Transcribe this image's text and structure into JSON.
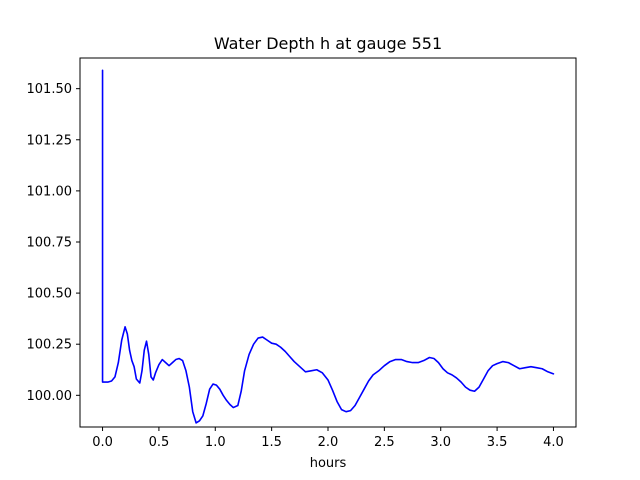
{
  "chart_data": {
    "type": "line",
    "title": "Water Depth h at gauge 551",
    "xlabel": "hours",
    "ylabel": "",
    "xlim": [
      -0.2,
      4.2
    ],
    "ylim": [
      99.845,
      101.65
    ],
    "x_ticks": [
      0.0,
      0.5,
      1.0,
      1.5,
      2.0,
      2.5,
      3.0,
      3.5,
      4.0
    ],
    "x_tick_labels": [
      "0.0",
      "0.5",
      "1.0",
      "1.5",
      "2.0",
      "2.5",
      "3.0",
      "3.5",
      "4.0"
    ],
    "y_ticks": [
      100.0,
      100.25,
      100.5,
      100.75,
      101.0,
      101.25,
      101.5
    ],
    "y_tick_labels": [
      "100.00",
      "100.25",
      "100.50",
      "100.75",
      "101.00",
      "101.25",
      "101.50"
    ],
    "grid": false,
    "legend": "none",
    "series": [
      {
        "color": "#0000ff",
        "x": [
          0.0,
          0.0,
          0.005,
          0.05,
          0.08,
          0.11,
          0.14,
          0.17,
          0.2,
          0.22,
          0.24,
          0.26,
          0.28,
          0.3,
          0.33,
          0.35,
          0.37,
          0.39,
          0.41,
          0.43,
          0.45,
          0.47,
          0.5,
          0.53,
          0.56,
          0.59,
          0.62,
          0.65,
          0.68,
          0.71,
          0.74,
          0.77,
          0.8,
          0.83,
          0.86,
          0.89,
          0.92,
          0.95,
          0.98,
          1.01,
          1.04,
          1.07,
          1.1,
          1.13,
          1.16,
          1.2,
          1.23,
          1.26,
          1.3,
          1.34,
          1.38,
          1.42,
          1.46,
          1.5,
          1.54,
          1.58,
          1.62,
          1.66,
          1.7,
          1.75,
          1.8,
          1.85,
          1.9,
          1.95,
          2.0,
          2.04,
          2.08,
          2.12,
          2.16,
          2.2,
          2.24,
          2.28,
          2.32,
          2.36,
          2.4,
          2.45,
          2.5,
          2.55,
          2.6,
          2.65,
          2.7,
          2.75,
          2.8,
          2.85,
          2.9,
          2.94,
          2.98,
          3.02,
          3.06,
          3.1,
          3.14,
          3.18,
          3.22,
          3.26,
          3.3,
          3.34,
          3.38,
          3.42,
          3.46,
          3.5,
          3.55,
          3.6,
          3.65,
          3.7,
          3.75,
          3.8,
          3.85,
          3.9,
          3.95,
          4.0
        ],
        "y": [
          101.59,
          100.065,
          100.065,
          100.065,
          100.07,
          100.09,
          100.16,
          100.27,
          100.335,
          100.3,
          100.22,
          100.17,
          100.14,
          100.08,
          100.06,
          100.12,
          100.22,
          100.265,
          100.2,
          100.09,
          100.075,
          100.11,
          100.15,
          100.175,
          100.16,
          100.145,
          100.16,
          100.175,
          100.18,
          100.17,
          100.12,
          100.04,
          99.92,
          99.865,
          99.875,
          99.9,
          99.96,
          100.03,
          100.055,
          100.05,
          100.03,
          100.0,
          99.975,
          99.955,
          99.94,
          99.95,
          100.02,
          100.12,
          100.2,
          100.25,
          100.28,
          100.285,
          100.27,
          100.255,
          100.25,
          100.235,
          100.215,
          100.19,
          100.165,
          100.14,
          100.115,
          100.12,
          100.125,
          100.11,
          100.075,
          100.025,
          99.97,
          99.93,
          99.92,
          99.925,
          99.95,
          99.99,
          100.03,
          100.07,
          100.1,
          100.12,
          100.145,
          100.165,
          100.175,
          100.175,
          100.165,
          100.16,
          100.16,
          100.17,
          100.185,
          100.18,
          100.16,
          100.13,
          100.11,
          100.1,
          100.085,
          100.065,
          100.04,
          100.025,
          100.02,
          100.04,
          100.08,
          100.12,
          100.145,
          100.155,
          100.165,
          100.16,
          100.145,
          100.13,
          100.135,
          100.14,
          100.135,
          100.13,
          100.115,
          100.105
        ]
      }
    ]
  }
}
